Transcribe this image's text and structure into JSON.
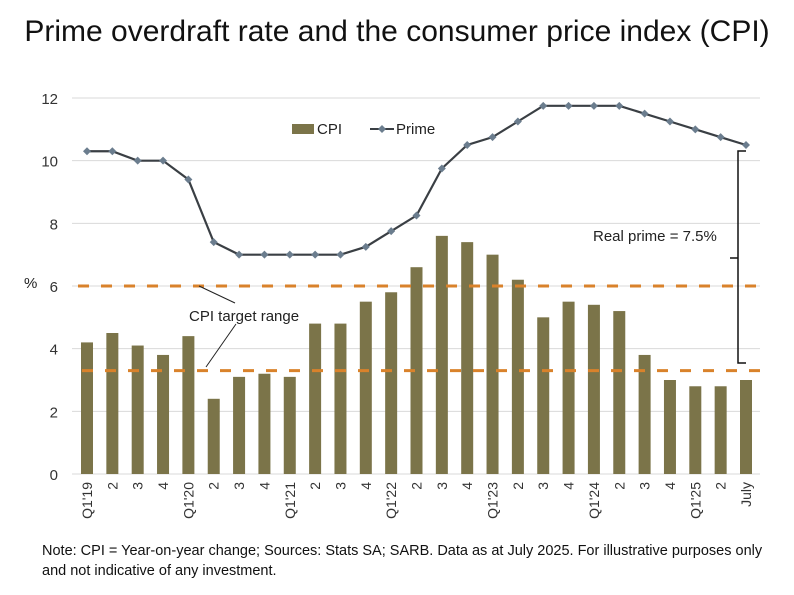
{
  "chart_data": {
    "type": "bar+line",
    "title": "Prime overdraft rate and the consumer price index (CPI)",
    "ylabel": "%",
    "ylim": [
      0,
      12
    ],
    "yticks": [
      0,
      2,
      4,
      6,
      8,
      10,
      12
    ],
    "grid": true,
    "legend_position": "top-center",
    "categories": [
      "Q1'19",
      "2",
      "3",
      "4",
      "Q1'20",
      "2",
      "3",
      "4",
      "Q1'21",
      "2",
      "3",
      "4",
      "Q1'22",
      "2",
      "3",
      "4",
      "Q1'23",
      "2",
      "3",
      "4",
      "Q1'24",
      "2",
      "3",
      "4",
      "Q1'25",
      "2",
      "July"
    ],
    "series": [
      {
        "name": "CPI",
        "type": "bar",
        "color": "#7b7449",
        "values": [
          4.2,
          4.5,
          4.1,
          3.8,
          4.4,
          2.4,
          3.1,
          3.2,
          3.1,
          4.8,
          4.8,
          5.5,
          5.8,
          6.6,
          7.6,
          7.4,
          7.0,
          6.2,
          5.0,
          5.5,
          5.4,
          5.2,
          3.8,
          3.0,
          2.8,
          2.8,
          3.0
        ]
      },
      {
        "name": "Prime",
        "type": "line",
        "color": "#3a3f44",
        "marker_color": "#6b7d8e",
        "values": [
          10.3,
          10.3,
          10.0,
          10.0,
          9.4,
          7.4,
          7.0,
          7.0,
          7.0,
          7.0,
          7.0,
          7.25,
          7.75,
          8.25,
          9.75,
          10.5,
          10.75,
          11.25,
          11.75,
          11.75,
          11.75,
          11.75,
          11.5,
          11.25,
          11.0,
          10.75,
          10.5
        ]
      }
    ],
    "reference_lines": {
      "values": [
        6.0,
        3.3
      ],
      "color": "#d9822b",
      "style": "dashed"
    },
    "annotations": {
      "target_range": "CPI target range",
      "real_prime": "Real prime = 7.5%"
    }
  },
  "note": "Note: CPI = Year-on-year change; Sources: Stats SA; SARB. Data as at July 2025. For illustrative purposes only and not indicative of any investment."
}
